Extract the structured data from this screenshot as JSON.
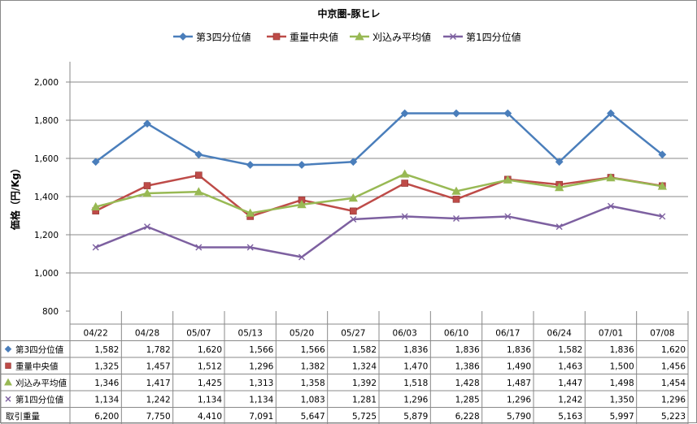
{
  "chart_data": {
    "type": "line",
    "title": "中京圏-豚ヒレ",
    "ylabel": "価格（円/Kg）",
    "xlabel": "",
    "ylim": [
      800,
      2000
    ],
    "yticks": [
      800,
      1000,
      1200,
      1400,
      1600,
      1800,
      2000
    ],
    "ytick_labels": [
      "800",
      "1,000",
      "1,200",
      "1,400",
      "1,600",
      "1,800",
      "2,000"
    ],
    "grid": true,
    "legend_position": "top",
    "categories": [
      "04/22",
      "04/28",
      "05/07",
      "05/13",
      "05/20",
      "05/27",
      "06/03",
      "06/10",
      "06/17",
      "06/24",
      "07/01",
      "07/08"
    ],
    "series": [
      {
        "name": "第3四分位値",
        "color": "#4a7ebb",
        "marker": "diamond",
        "values": [
          1582,
          1782,
          1620,
          1566,
          1566,
          1582,
          1836,
          1836,
          1836,
          1582,
          1836,
          1620
        ],
        "labels": [
          "1,582",
          "1,782",
          "1,620",
          "1,566",
          "1,566",
          "1,582",
          "1,836",
          "1,836",
          "1,836",
          "1,582",
          "1,836",
          "1,620"
        ]
      },
      {
        "name": "重量中央値",
        "color": "#be4b48",
        "marker": "square",
        "values": [
          1325,
          1457,
          1512,
          1296,
          1382,
          1324,
          1470,
          1386,
          1490,
          1463,
          1500,
          1456
        ],
        "labels": [
          "1,325",
          "1,457",
          "1,512",
          "1,296",
          "1,382",
          "1,324",
          "1,470",
          "1,386",
          "1,490",
          "1,463",
          "1,500",
          "1,456"
        ]
      },
      {
        "name": "刈込み平均値",
        "color": "#98b954",
        "marker": "triangle",
        "values": [
          1346,
          1417,
          1425,
          1313,
          1358,
          1392,
          1518,
          1428,
          1487,
          1447,
          1498,
          1454
        ],
        "labels": [
          "1,346",
          "1,417",
          "1,425",
          "1,313",
          "1,358",
          "1,392",
          "1,518",
          "1,428",
          "1,487",
          "1,447",
          "1,498",
          "1,454"
        ]
      },
      {
        "name": "第1四分位値",
        "color": "#7d60a0",
        "marker": "x",
        "values": [
          1134,
          1242,
          1134,
          1134,
          1083,
          1281,
          1296,
          1285,
          1296,
          1242,
          1350,
          1296
        ],
        "labels": [
          "1,134",
          "1,242",
          "1,134",
          "1,134",
          "1,083",
          "1,281",
          "1,296",
          "1,285",
          "1,296",
          "1,242",
          "1,350",
          "1,296"
        ]
      }
    ],
    "table_extra_row": {
      "name": "取引重量",
      "values": [
        6200,
        7750,
        4410,
        7091,
        5647,
        5725,
        5879,
        6228,
        5790,
        5163,
        5997,
        5223
      ],
      "labels": [
        "6,200",
        "7,750",
        "4,410",
        "7,091",
        "5,647",
        "5,725",
        "5,879",
        "6,228",
        "5,790",
        "5,163",
        "5,997",
        "5,223"
      ]
    }
  }
}
